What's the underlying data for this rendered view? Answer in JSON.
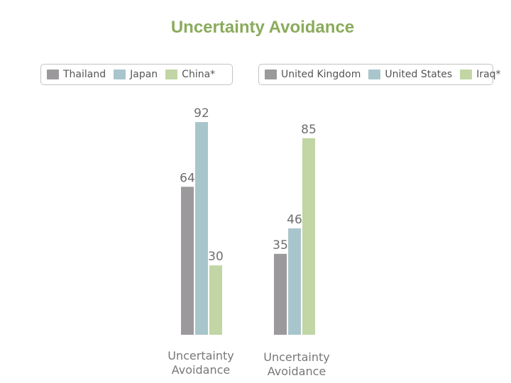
{
  "title": "Uncertainty Avoidance",
  "colors": {
    "title": "#8aab5b",
    "gray": "#9b999c",
    "blue": "#a9c5cc",
    "green": "#c1d6a4",
    "label_text": "#6d6d6d"
  },
  "chart_data": [
    {
      "type": "bar",
      "categories": [
        "Uncertainty Avoidance"
      ],
      "category_label_lines": [
        "Uncertainty",
        "Avoidance"
      ],
      "series": [
        {
          "name": "Thailand",
          "values": [
            64
          ],
          "color": "#9b999c"
        },
        {
          "name": "Japan",
          "values": [
            92
          ],
          "color": "#a9c5cc"
        },
        {
          "name": "China*",
          "values": [
            30
          ],
          "color": "#c1d6a4"
        }
      ],
      "ylim": [
        0,
        100
      ],
      "legend": "top",
      "grid": false
    },
    {
      "type": "bar",
      "categories": [
        "Uncertainty Avoidance"
      ],
      "category_label_lines": [
        "Uncertainty",
        "Avoidance"
      ],
      "series": [
        {
          "name": "United Kingdom",
          "values": [
            35
          ],
          "color": "#9b999c"
        },
        {
          "name": "United States",
          "values": [
            46
          ],
          "color": "#a9c5cc"
        },
        {
          "name": "Iraq*",
          "values": [
            85
          ],
          "color": "#c1d6a4"
        }
      ],
      "ylim": [
        0,
        100
      ],
      "legend": "top",
      "grid": false
    }
  ]
}
